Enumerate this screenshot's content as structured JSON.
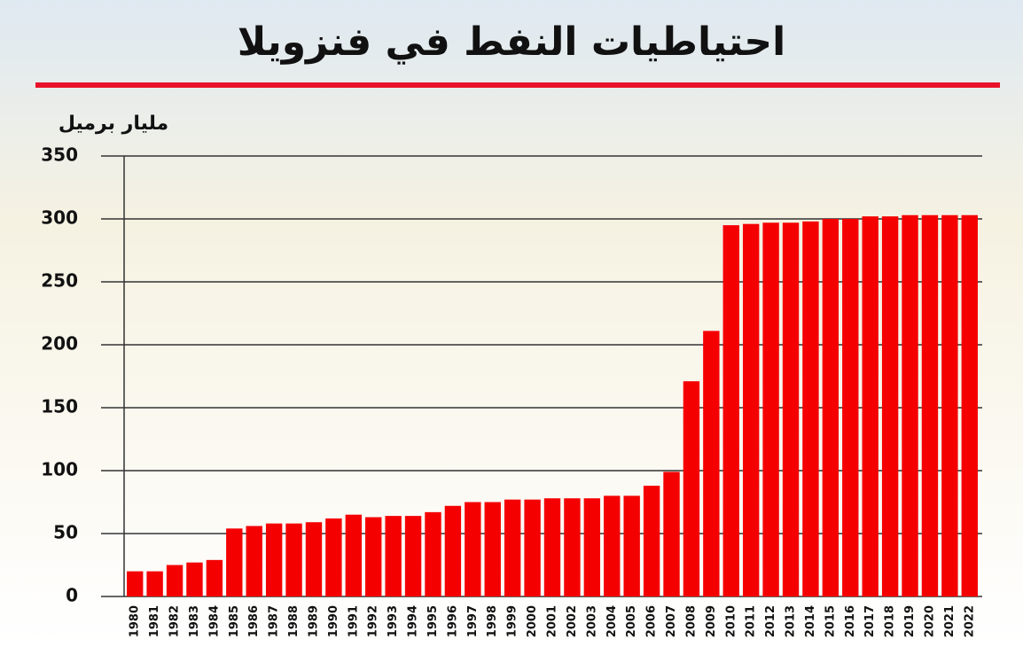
{
  "chart_data": {
    "type": "bar",
    "title": "احتياطيات النفط في فنزويلا",
    "y_label": "مليار برميل",
    "categories": [
      "1980",
      "1981",
      "1982",
      "1983",
      "1984",
      "1985",
      "1986",
      "1987",
      "1988",
      "1989",
      "1990",
      "1991",
      "1992",
      "1993",
      "1994",
      "1995",
      "1996",
      "1997",
      "1998",
      "1999",
      "2000",
      "2001",
      "2002",
      "2003",
      "2004",
      "2005",
      "2006",
      "2007",
      "2008",
      "2009",
      "2010",
      "2011",
      "2012",
      "2013",
      "2014",
      "2015",
      "2016",
      "2017",
      "2018",
      "2019",
      "2020",
      "2021",
      "2022"
    ],
    "values": [
      20,
      20,
      25,
      27,
      29,
      54,
      56,
      58,
      58,
      59,
      62,
      65,
      63,
      64,
      64,
      67,
      72,
      75,
      75,
      77,
      77,
      78,
      78,
      78,
      80,
      80,
      88,
      99,
      171,
      211,
      295,
      296,
      297,
      297,
      298,
      300,
      300,
      302,
      302,
      303,
      303,
      303,
      303
    ],
    "color": "#f40000",
    "ylim": [
      0,
      350
    ],
    "yticks": [
      0,
      50,
      100,
      150,
      200,
      250,
      300,
      350
    ],
    "grid": true
  }
}
